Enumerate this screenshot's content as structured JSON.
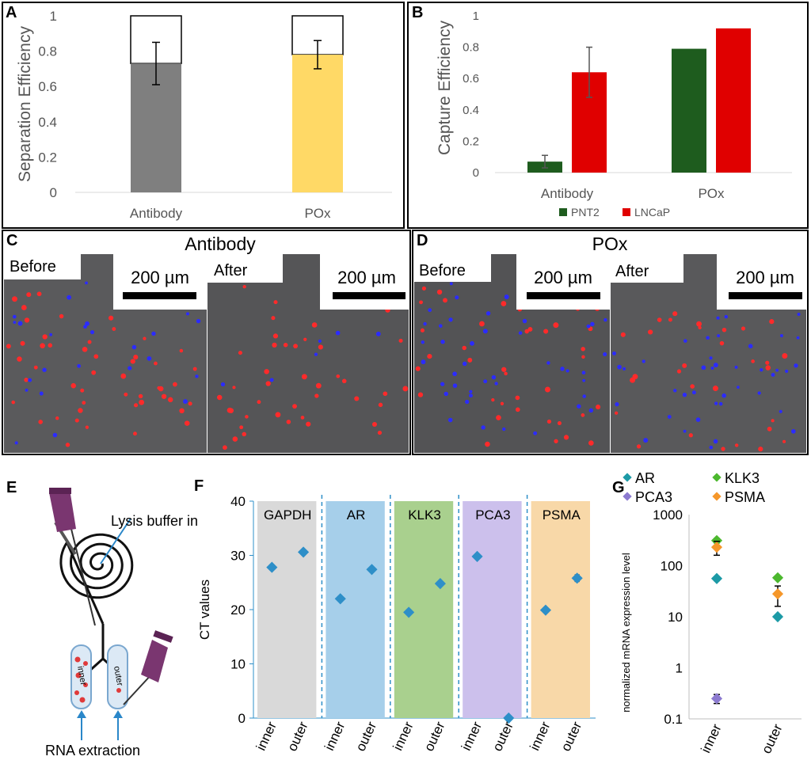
{
  "panels": {
    "A": "A",
    "B": "B",
    "C": "C",
    "D": "D",
    "E": "E",
    "F": "F",
    "G": "G"
  },
  "chart_data": [
    {
      "id": "A",
      "type": "bar",
      "categories": [
        "Antibody",
        "POx"
      ],
      "values": [
        0.73,
        0.78
      ],
      "errors": [
        0.12,
        0.08
      ],
      "totals": [
        1,
        1
      ],
      "colors": [
        "#7f7f7f",
        "#ffd966"
      ],
      "ylabel": "Separation Efficiency",
      "ylim": [
        0,
        1
      ],
      "yticks": [
        0,
        0.2,
        0.4,
        0.6,
        0.8,
        1
      ],
      "ytick_labels": [
        "0",
        "0.2",
        "0.4",
        "0.6",
        "0.8",
        "1"
      ]
    },
    {
      "id": "B",
      "type": "bar",
      "categories": [
        "Antibody",
        "POx"
      ],
      "series": [
        {
          "name": "PNT2",
          "values": [
            0.07,
            0.79
          ],
          "errors": [
            0.04,
            0.005
          ],
          "color": "#1e5c1e"
        },
        {
          "name": "LNCaP",
          "values": [
            0.64,
            0.92
          ],
          "errors": [
            0.16,
            0.005
          ],
          "color": "#e00000"
        }
      ],
      "ylabel": "Capture Efficiency",
      "ylim": [
        0,
        1
      ],
      "yticks": [
        0,
        0.2,
        0.4,
        0.6,
        0.8,
        1
      ],
      "ytick_labels": [
        "0",
        "0.2",
        "0.4",
        "0.6",
        "0.8",
        "1"
      ],
      "legend_position": "bottom"
    },
    {
      "id": "F",
      "type": "scatter",
      "ylabel": "CT values",
      "ylim": [
        0,
        40
      ],
      "yticks": [
        0,
        10,
        20,
        30,
        40
      ],
      "ytick_labels": [
        "0",
        "10",
        "20",
        "30",
        "40"
      ],
      "groups": [
        {
          "name": "GAPDH",
          "color": "#d9d9d9",
          "inner": 27.8,
          "outer": 30.6,
          "outer_err": 0
        },
        {
          "name": "AR",
          "color": "#a6cfea",
          "inner": 22.0,
          "outer": 27.4,
          "outer_err": 0
        },
        {
          "name": "KLK3",
          "color": "#a9d08e",
          "inner": 19.5,
          "outer": 24.8,
          "outer_err": 0
        },
        {
          "name": "PCA3",
          "color": "#ccc0ec",
          "inner": 29.8,
          "outer": 0,
          "outer_err": 0
        },
        {
          "name": "PSMA",
          "color": "#f8d8a8",
          "inner": 19.9,
          "outer": 25.8,
          "outer_err": 0.6
        }
      ],
      "xlabels": [
        "inner",
        "outer"
      ],
      "marker_color": "#2e8fc8"
    },
    {
      "id": "G",
      "type": "scatter",
      "yscale": "log",
      "ylabel": "normalized mRNA expression level",
      "ylim": [
        0.1,
        1000
      ],
      "yticks": [
        0.1,
        1,
        10,
        100,
        1000
      ],
      "ytick_labels": [
        "0.1",
        "1",
        "10",
        "100",
        "1000"
      ],
      "categories": [
        "inner",
        "outer"
      ],
      "series": [
        {
          "name": "AR",
          "color": "#1c9aa6",
          "values": [
            56,
            10
          ],
          "errors": [
            [
              5,
              5
            ],
            [
              0,
              0
            ]
          ]
        },
        {
          "name": "KLK3",
          "color": "#4cb82e",
          "values": [
            310,
            58
          ],
          "errors": [
            [
              30,
              30
            ],
            [
              0,
              0
            ]
          ]
        },
        {
          "name": "PCA3",
          "color": "#8c7ad0",
          "values": [
            0.25,
            null
          ],
          "errors": [
            [
              0.05,
              0.05
            ],
            [
              0,
              0
            ]
          ]
        },
        {
          "name": "PSMA",
          "color": "#f5972a",
          "values": [
            230,
            28
          ],
          "errors": [
            [
              70,
              70
            ],
            [
              12,
              12
            ]
          ]
        }
      ]
    }
  ],
  "micrographs": {
    "C": {
      "title": "Antibody",
      "before": "Before",
      "after": "After",
      "scale": "200 µm"
    },
    "D": {
      "title": "POx",
      "before": "Before",
      "after": "After",
      "scale": "200 µm"
    }
  },
  "schematic": {
    "lysis_label": "Lysis buffer in",
    "inner_tube": "inner",
    "outer_tube": "outer",
    "rna_label": "RNA extraction"
  }
}
